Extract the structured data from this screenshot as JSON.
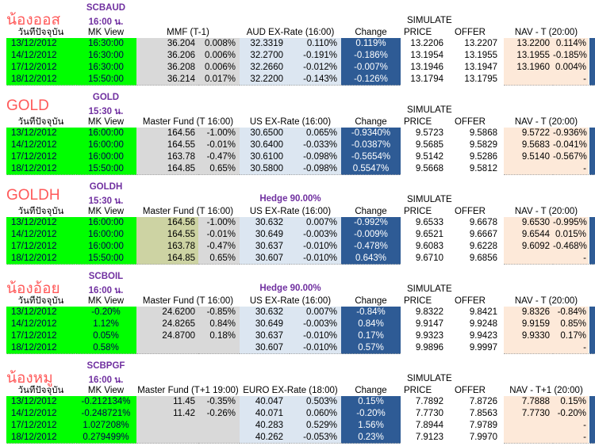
{
  "labels": {
    "date_header": "วันที่ปัจจุบัน",
    "mk_header": "MK View",
    "change_header": "Change",
    "simulate": "SIMULATE",
    "price_header": "PRICE",
    "offer_header": "OFFER"
  },
  "colors": {
    "green": "#00FF00",
    "gray": "#D9D9D9",
    "khaki": "#CDD3A3",
    "lightblue": "#DCE6F1",
    "darkblue": "#2E5B95",
    "peach": "#FDE9D9",
    "nickname_red": "#FF5A5A",
    "purple": "#7030A0",
    "navy_text": "#00004D"
  },
  "sections": [
    {
      "nickname": "น้องออส",
      "code": "SCBAUD",
      "time": "16:00 น.",
      "hedge": "",
      "fund_header": "MMF (T-1)",
      "ex_header": "AUD EX-Rate (16:00)",
      "nav_header": "NAV - T (20:00)",
      "fund_bg": "gray",
      "rows": [
        {
          "date": "13/12/2012",
          "mk": "16:30:00",
          "fund": "36.204",
          "fundp": "0.008%",
          "ex": "32.3319",
          "exp": "0.110%",
          "chg": "0.119%",
          "price": "13.2206",
          "offer": "13.2207",
          "nav": "13.2200",
          "navp": "0.114%"
        },
        {
          "date": "14/12/2012",
          "mk": "16:30:00",
          "fund": "36.206",
          "fundp": "0.006%",
          "ex": "32.2700",
          "exp": "-0.191%",
          "chg": "-0.186%",
          "price": "13.1954",
          "offer": "13.1955",
          "nav": "13.1955",
          "navp": "-0.185%"
        },
        {
          "date": "17/12/2012",
          "mk": "16:30:00",
          "fund": "36.208",
          "fundp": "0.006%",
          "ex": "32.2660",
          "exp": "-0.012%",
          "chg": "-0.007%",
          "price": "13.1946",
          "offer": "13.1947",
          "nav": "13.1960",
          "navp": "0.004%"
        },
        {
          "date": "18/12/2012",
          "mk": "15:50:00",
          "fund": "36.214",
          "fundp": "0.017%",
          "ex": "32.2200",
          "exp": "-0.143%",
          "chg": "-0.126%",
          "price": "13.1794",
          "offer": "13.1795",
          "nav": "",
          "navp": "-"
        }
      ]
    },
    {
      "nickname": "GOLD",
      "code": "GOLD",
      "time": "15:30 น.",
      "hedge": "",
      "fund_header": "Master Fund (T 16:00)",
      "ex_header": "US EX-Rate (16:00)",
      "nav_header": "NAV - T (20:00)",
      "fund_bg": "gray",
      "rows": [
        {
          "date": "13/12/2012",
          "mk": "16:00:00",
          "fund": "164.56",
          "fundp": "-1.00%",
          "ex": "30.6500",
          "exp": "0.065%",
          "chg": "-0.9340%",
          "price": "9.5723",
          "offer": "9.5868",
          "nav": "9.5722",
          "navp": "-0.936%"
        },
        {
          "date": "14/12/2012",
          "mk": "16:00:00",
          "fund": "164.55",
          "fundp": "-0.01%",
          "ex": "30.6400",
          "exp": "-0.033%",
          "chg": "-0.0387%",
          "price": "9.5685",
          "offer": "9.5829",
          "nav": "9.5683",
          "navp": "-0.041%"
        },
        {
          "date": "17/12/2012",
          "mk": "16:00:00",
          "fund": "163.78",
          "fundp": "-0.47%",
          "ex": "30.6100",
          "exp": "-0.098%",
          "chg": "-0.5654%",
          "price": "9.5142",
          "offer": "9.5286",
          "nav": "9.5140",
          "navp": "-0.567%"
        },
        {
          "date": "18/12/2012",
          "mk": "15:50:00",
          "fund": "164.85",
          "fundp": "0.65%",
          "ex": "30.5800",
          "exp": "-0.098%",
          "chg": "0.5547%",
          "price": "9.5668",
          "offer": "9.5812",
          "nav": "",
          "navp": "-"
        }
      ]
    },
    {
      "nickname": "GOLDH",
      "code": "GOLDH",
      "time": "15:30 น.",
      "hedge": "Hedge 90.00%",
      "fund_header": "Master Fund (T 16:00)",
      "ex_header": "US EX-Rate (16:00)",
      "nav_header": "NAV - T (20:00)",
      "fund_bg": "khaki",
      "rows": [
        {
          "date": "13/12/2012",
          "mk": "16:00:00",
          "fund": "164.56",
          "fundp": "-1.00%",
          "ex": "30.632",
          "exp": "0.007%",
          "chg": "-0.992%",
          "price": "9.6533",
          "offer": "9.6678",
          "nav": "9.6530",
          "navp": "-0.995%"
        },
        {
          "date": "14/12/2012",
          "mk": "16:00:00",
          "fund": "164.55",
          "fundp": "-0.01%",
          "ex": "30.649",
          "exp": "-0.003%",
          "chg": "-0.009%",
          "price": "9.6521",
          "offer": "9.6667",
          "nav": "9.6544",
          "navp": "0.015%"
        },
        {
          "date": "17/12/2012",
          "mk": "16:00:00",
          "fund": "163.78",
          "fundp": "-0.47%",
          "ex": "30.637",
          "exp": "-0.010%",
          "chg": "-0.478%",
          "price": "9.6083",
          "offer": "9.6228",
          "nav": "9.6092",
          "navp": "-0.468%"
        },
        {
          "date": "18/12/2012",
          "mk": "15:50:00",
          "fund": "164.85",
          "fundp": "0.65%",
          "ex": "30.607",
          "exp": "-0.010%",
          "chg": "0.643%",
          "price": "9.6710",
          "offer": "9.6856",
          "nav": "",
          "navp": "-"
        }
      ]
    },
    {
      "nickname": "น้องอ้อย",
      "code": "SCBOIL",
      "time": "16:00 น.",
      "hedge": "Hedge 90.00%",
      "fund_header": "Master Fund (T 16:00)",
      "ex_header": "US EX-Rate (16:00)",
      "nav_header": "NAV - T (20:00)",
      "fund_bg": "gray",
      "rows": [
        {
          "date": "13/12/2012",
          "mk": "-0.20%",
          "fund": "24.6200",
          "fundp": "-0.85%",
          "ex": "30.632",
          "exp": "0.007%",
          "chg": "-0.84%",
          "price": "9.8322",
          "offer": "9.8421",
          "nav": "9.8326",
          "navp": "-0.84%"
        },
        {
          "date": "14/12/2012",
          "mk": "1.12%",
          "fund": "24.8265",
          "fundp": "0.84%",
          "ex": "30.649",
          "exp": "-0.003%",
          "chg": "0.84%",
          "price": "9.9147",
          "offer": "9.9248",
          "nav": "9.9159",
          "navp": "0.85%"
        },
        {
          "date": "17/12/2012",
          "mk": "0.05%",
          "fund": "24.8700",
          "fundp": "0.18%",
          "ex": "30.637",
          "exp": "-0.010%",
          "chg": "0.17%",
          "price": "9.9323",
          "offer": "9.9423",
          "nav": "9.9330",
          "navp": "0.17%"
        },
        {
          "date": "18/12/2012",
          "mk": "0.58%",
          "fund": "",
          "fundp": "",
          "ex": "30.607",
          "exp": "-0.010%",
          "chg": "0.57%",
          "price": "9.9896",
          "offer": "9.9997",
          "nav": "",
          "navp": "-"
        }
      ]
    },
    {
      "nickname": "น้องหมู",
      "code": "SCBPGF",
      "time": "16:00 น.",
      "hedge": "",
      "fund_header": "Master Fund (T+1 19:00)",
      "ex_header": "EURO EX-Rate (18:00)",
      "nav_header": "NAV - T+1 (20:00)",
      "fund_bg": "gray",
      "rows": [
        {
          "date": "13/12/2012",
          "mk": "-0.212134%",
          "fund": "11.45",
          "fundp": "-0.35%",
          "ex": "40.047",
          "exp": "0.503%",
          "chg": "0.15%",
          "price": "7.7892",
          "offer": "7.8726",
          "nav": "7.7888",
          "navp": "0.15%"
        },
        {
          "date": "14/12/2012",
          "mk": "-0.248721%",
          "fund": "11.42",
          "fundp": "-0.26%",
          "ex": "40.071",
          "exp": "0.060%",
          "chg": "-0.20%",
          "price": "7.7730",
          "offer": "7.8563",
          "nav": "7.7730",
          "navp": "-0.20%"
        },
        {
          "date": "17/12/2012",
          "mk": "1.027208%",
          "fund": "",
          "fundp": "",
          "ex": "40.283",
          "exp": "0.529%",
          "chg": "1.56%",
          "price": "7.8944",
          "offer": "7.9789",
          "nav": "",
          "navp": "-"
        },
        {
          "date": "18/12/2012",
          "mk": "0.279499%",
          "fund": "",
          "fundp": "",
          "ex": "40.262",
          "exp": "-0.053%",
          "chg": "0.23%",
          "price": "7.9123",
          "offer": "7.9970",
          "nav": "",
          "navp": "-"
        }
      ]
    }
  ]
}
